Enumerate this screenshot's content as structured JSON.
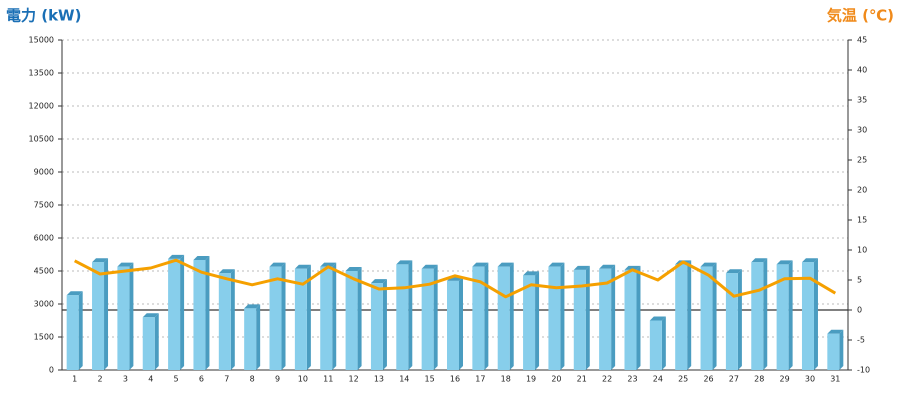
{
  "chart_data": {
    "type": "bar-line",
    "y_title": "電力 (kW)",
    "y2_title": "気温 (℃)",
    "categories": [
      "1",
      "2",
      "3",
      "4",
      "5",
      "6",
      "7",
      "8",
      "9",
      "10",
      "11",
      "12",
      "13",
      "14",
      "15",
      "16",
      "17",
      "18",
      "19",
      "20",
      "21",
      "22",
      "23",
      "24",
      "25",
      "26",
      "27",
      "28",
      "29",
      "30",
      "31"
    ],
    "series": [
      {
        "type": "bar",
        "color": "#87ceeb",
        "side_color": "#4a9cc0",
        "values": [
          3400,
          4900,
          4700,
          2400,
          5050,
          5000,
          4400,
          2800,
          4700,
          4600,
          4700,
          4500,
          3950,
          4800,
          4600,
          4050,
          4700,
          4700,
          4300,
          4700,
          4550,
          4600,
          4550,
          2250,
          4800,
          4700,
          4400,
          4900,
          4800,
          4900,
          1650
        ]
      },
      {
        "type": "line",
        "axis": "y2",
        "color": "#f5a000",
        "values": [
          8.2,
          6,
          6.5,
          7,
          8.3,
          6.3,
          5.2,
          4.2,
          5.2,
          4.3,
          7.2,
          5.2,
          3.5,
          3.7,
          4.3,
          5.7,
          4.7,
          2.2,
          4.2,
          3.7,
          4,
          4.5,
          6.7,
          5,
          8,
          5.8,
          2.3,
          3.3,
          5.2,
          5.3,
          2.8
        ]
      }
    ],
    "ylim": [
      0,
      15000
    ],
    "yticks": [
      0,
      1500,
      3000,
      4500,
      6000,
      7500,
      9000,
      10500,
      12000,
      13500,
      15000
    ],
    "y2lim": [
      -10,
      45
    ],
    "y2ticks": [
      -10,
      -5,
      0,
      5,
      10,
      15,
      20,
      25,
      30,
      35,
      40,
      45
    ],
    "grid": true,
    "y_title_color": "#1a6fb5",
    "y2_title_color": "#f08a1a"
  }
}
